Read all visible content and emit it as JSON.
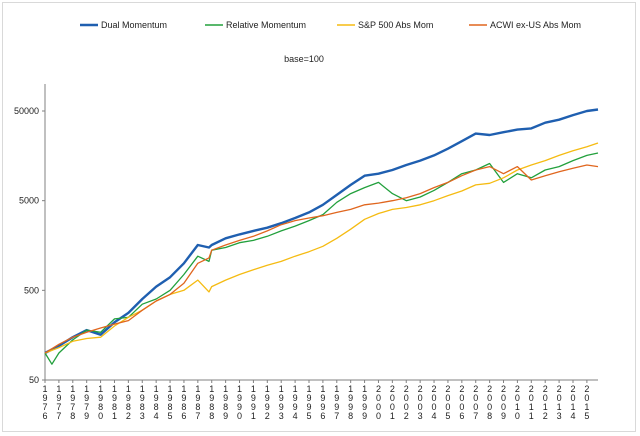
{
  "chart_data": {
    "type": "line",
    "subtitle": "base=100",
    "y_scale": "log",
    "ylim": [
      50,
      100000
    ],
    "y_ticks": [
      {
        "value": 50,
        "label": "50"
      },
      {
        "value": 500,
        "label": "500"
      },
      {
        "value": 5000,
        "label": "5000"
      },
      {
        "value": 50000,
        "label": "50000"
      }
    ],
    "x_range": [
      1976,
      2015.8
    ],
    "x_ticks": [
      "1976",
      "1977",
      "1978",
      "1979",
      "1980",
      "1981",
      "1982",
      "1983",
      "1984",
      "1985",
      "1986",
      "1987",
      "1988",
      "1989",
      "1990",
      "1991",
      "1992",
      "1993",
      "1994",
      "1995",
      "1996",
      "1997",
      "1998",
      "1999",
      "2000",
      "2001",
      "2002",
      "2003",
      "2004",
      "2005",
      "2006",
      "2007",
      "2008",
      "2009",
      "2010",
      "2011",
      "2012",
      "2013",
      "2014",
      "2015"
    ],
    "legend_position": "top",
    "series": [
      {
        "name": "Dual Momentum",
        "color": "#1f5fb0",
        "x": [
          1976,
          1977,
          1978,
          1979,
          1980,
          1981,
          1982,
          1983,
          1984,
          1985,
          1986,
          1987,
          1987.8,
          1988,
          1989,
          1990,
          1991,
          1992,
          1993,
          1994,
          1995,
          1996,
          1997,
          1998,
          1999,
          2000,
          2001,
          2002,
          2003,
          2004,
          2005,
          2006,
          2007,
          2008,
          2009,
          2010,
          2011,
          2012,
          2013,
          2014,
          2015,
          2015.8
        ],
        "values": [
          100,
          120,
          150,
          180,
          160,
          220,
          280,
          400,
          550,
          700,
          1000,
          1600,
          1500,
          1600,
          1900,
          2100,
          2300,
          2500,
          2800,
          3200,
          3700,
          4500,
          5800,
          7500,
          9500,
          10000,
          11000,
          12500,
          14000,
          16000,
          19000,
          23000,
          28000,
          27000,
          29000,
          31000,
          32000,
          37000,
          40000,
          45000,
          50000,
          52000
        ]
      },
      {
        "name": "Relative Momentum",
        "color": "#22a03c",
        "x": [
          1976,
          1976.5,
          1977,
          1978,
          1979,
          1980,
          1981,
          1982,
          1983,
          1984,
          1985,
          1986,
          1987,
          1987.8,
          1988,
          1989,
          1990,
          1991,
          1992,
          1993,
          1994,
          1995,
          1996,
          1997,
          1998,
          1999,
          2000,
          2001,
          2002,
          2003,
          2004,
          2005,
          2006,
          2007,
          2008,
          2009,
          2010,
          2011,
          2012,
          2013,
          2014,
          2015,
          2015.8
        ],
        "values": [
          100,
          75,
          100,
          140,
          180,
          170,
          240,
          250,
          350,
          400,
          500,
          750,
          1200,
          1050,
          1400,
          1500,
          1700,
          1800,
          2000,
          2300,
          2600,
          3000,
          3500,
          4800,
          6000,
          7000,
          8000,
          6000,
          5000,
          5500,
          6500,
          8000,
          10000,
          11000,
          13000,
          8000,
          10000,
          9000,
          11000,
          12000,
          14000,
          16000,
          17000
        ]
      },
      {
        "name": "S&P 500 Abs Mom",
        "color": "#f5bb12",
        "x": [
          1976,
          1977,
          1978,
          1979,
          1980,
          1981,
          1982,
          1983,
          1984,
          1985,
          1986,
          1987,
          1987.8,
          1988,
          1989,
          1990,
          1991,
          1992,
          1993,
          1994,
          1995,
          1996,
          1997,
          1998,
          1999,
          2000,
          2001,
          2002,
          2003,
          2004,
          2005,
          2006,
          2007,
          2008,
          2009,
          2010,
          2011,
          2012,
          2013,
          2014,
          2015,
          2015.8
        ],
        "values": [
          100,
          115,
          135,
          145,
          150,
          200,
          250,
          300,
          380,
          450,
          500,
          650,
          480,
          550,
          650,
          750,
          850,
          950,
          1050,
          1200,
          1350,
          1550,
          1900,
          2400,
          3100,
          3600,
          4000,
          4200,
          4500,
          5000,
          5700,
          6400,
          7500,
          7800,
          9000,
          11000,
          12500,
          14000,
          16000,
          18000,
          20000,
          22000
        ]
      },
      {
        "name": "ACWI ex-US Abs Mom",
        "color": "#e0661e",
        "x": [
          1976,
          1977,
          1978,
          1979,
          1980,
          1981,
          1982,
          1983,
          1984,
          1985,
          1986,
          1987,
          1987.8,
          1988,
          1989,
          1990,
          1991,
          1992,
          1993,
          1994,
          1995,
          1996,
          1997,
          1998,
          1999,
          2000,
          2001,
          2002,
          2003,
          2004,
          2005,
          2006,
          2007,
          2008,
          2009,
          2010,
          2011,
          2012,
          2013,
          2014,
          2015,
          2015.8
        ],
        "values": [
          100,
          125,
          150,
          170,
          190,
          210,
          230,
          300,
          380,
          450,
          600,
          1000,
          1150,
          1400,
          1600,
          1800,
          2000,
          2300,
          2700,
          3000,
          3200,
          3400,
          3700,
          4000,
          4500,
          4700,
          5000,
          5400,
          6000,
          7000,
          8000,
          9500,
          11000,
          12000,
          10000,
          12000,
          8500,
          9500,
          10500,
          11500,
          12500,
          12000
        ]
      }
    ]
  }
}
